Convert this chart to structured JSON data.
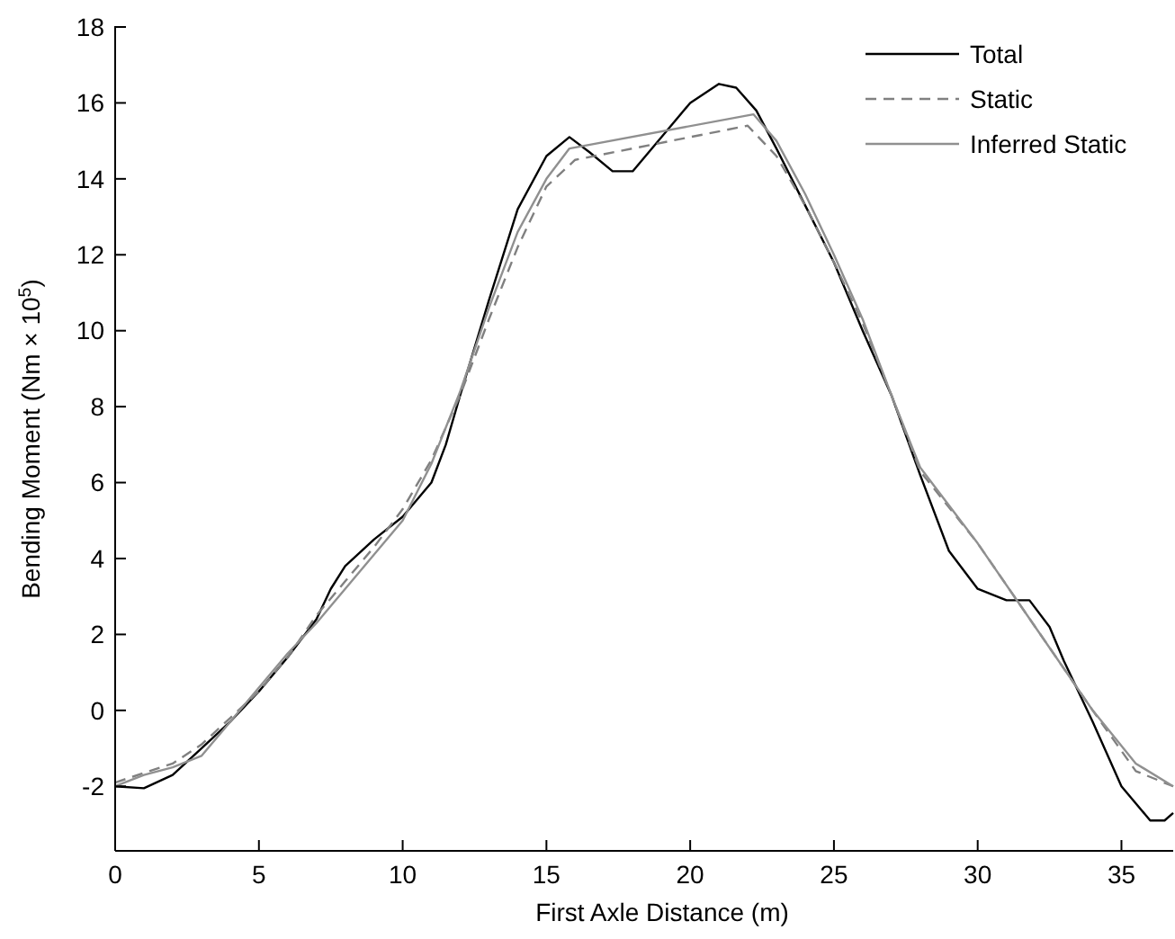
{
  "chart_data": {
    "type": "line",
    "xlabel": "First Axle Distance (m)",
    "ylabel": "Bending Moment (Nm × 10$^{5}$)",
    "xlim": [
      0,
      36.8
    ],
    "ylim": [
      -3.7,
      18
    ],
    "xticks": [
      0,
      5,
      10,
      15,
      20,
      25,
      30,
      35
    ],
    "yticks": [
      -2,
      0,
      2,
      4,
      6,
      8,
      10,
      12,
      14,
      16,
      18
    ],
    "legend": "top right",
    "grid": false,
    "series": [
      {
        "name": "Total",
        "color": "#000000",
        "line_style": "solid",
        "x": [
          0,
          1,
          2,
          3,
          4,
          5,
          6,
          7,
          7.5,
          8,
          9,
          10,
          11,
          11.5,
          12,
          13,
          14,
          15,
          15.8,
          16.5,
          17.3,
          18,
          19,
          20,
          21,
          21.6,
          22.3,
          23,
          24,
          25,
          26,
          27,
          28,
          29,
          30,
          31,
          31.8,
          32.5,
          33,
          34,
          35,
          36,
          36.5,
          36.8
        ],
        "values": [
          -2.0,
          -2.05,
          -1.7,
          -1.0,
          -0.3,
          0.5,
          1.4,
          2.4,
          3.2,
          3.8,
          4.5,
          5.1,
          6.0,
          7.0,
          8.3,
          10.8,
          13.2,
          14.6,
          15.1,
          14.7,
          14.2,
          14.2,
          15.1,
          16.0,
          16.5,
          16.4,
          15.8,
          14.8,
          13.3,
          11.8,
          10.0,
          8.3,
          6.2,
          4.2,
          3.2,
          2.9,
          2.9,
          2.2,
          1.3,
          -0.3,
          -2.0,
          -2.9,
          -2.9,
          -2.7
        ]
      },
      {
        "name": "Static",
        "color": "#808080",
        "line_style": "dashed",
        "x": [
          0,
          2,
          3,
          4,
          5,
          6,
          7,
          8,
          9,
          10,
          11,
          12,
          13,
          14,
          15,
          16,
          22,
          23,
          24,
          25,
          26,
          27,
          28,
          30,
          32,
          34,
          35.5,
          36.8
        ],
        "values": [
          -1.9,
          -1.4,
          -0.9,
          -0.2,
          0.5,
          1.4,
          2.5,
          3.4,
          4.3,
          5.3,
          6.6,
          8.3,
          10.3,
          12.2,
          13.8,
          14.5,
          15.4,
          14.6,
          13.3,
          11.8,
          10.2,
          8.3,
          6.3,
          4.4,
          2.2,
          0.0,
          -1.6,
          -2.0
        ]
      },
      {
        "name": "Inferred Static",
        "color": "#909090",
        "line_style": "solid",
        "x": [
          0,
          1,
          2,
          3,
          4,
          5,
          6,
          7,
          8,
          9,
          10,
          11,
          12,
          13,
          14,
          15,
          15.8,
          22.2,
          23,
          24,
          25,
          26,
          27,
          28,
          30,
          32,
          34,
          35.5,
          36.8
        ],
        "values": [
          -2.0,
          -1.7,
          -1.5,
          -1.2,
          -0.3,
          0.6,
          1.5,
          2.3,
          3.2,
          4.1,
          5.0,
          6.5,
          8.4,
          10.6,
          12.6,
          14.0,
          14.8,
          15.7,
          15.0,
          13.6,
          12.0,
          10.3,
          8.3,
          6.4,
          4.4,
          2.2,
          0.0,
          -1.4,
          -2.0
        ]
      }
    ]
  }
}
